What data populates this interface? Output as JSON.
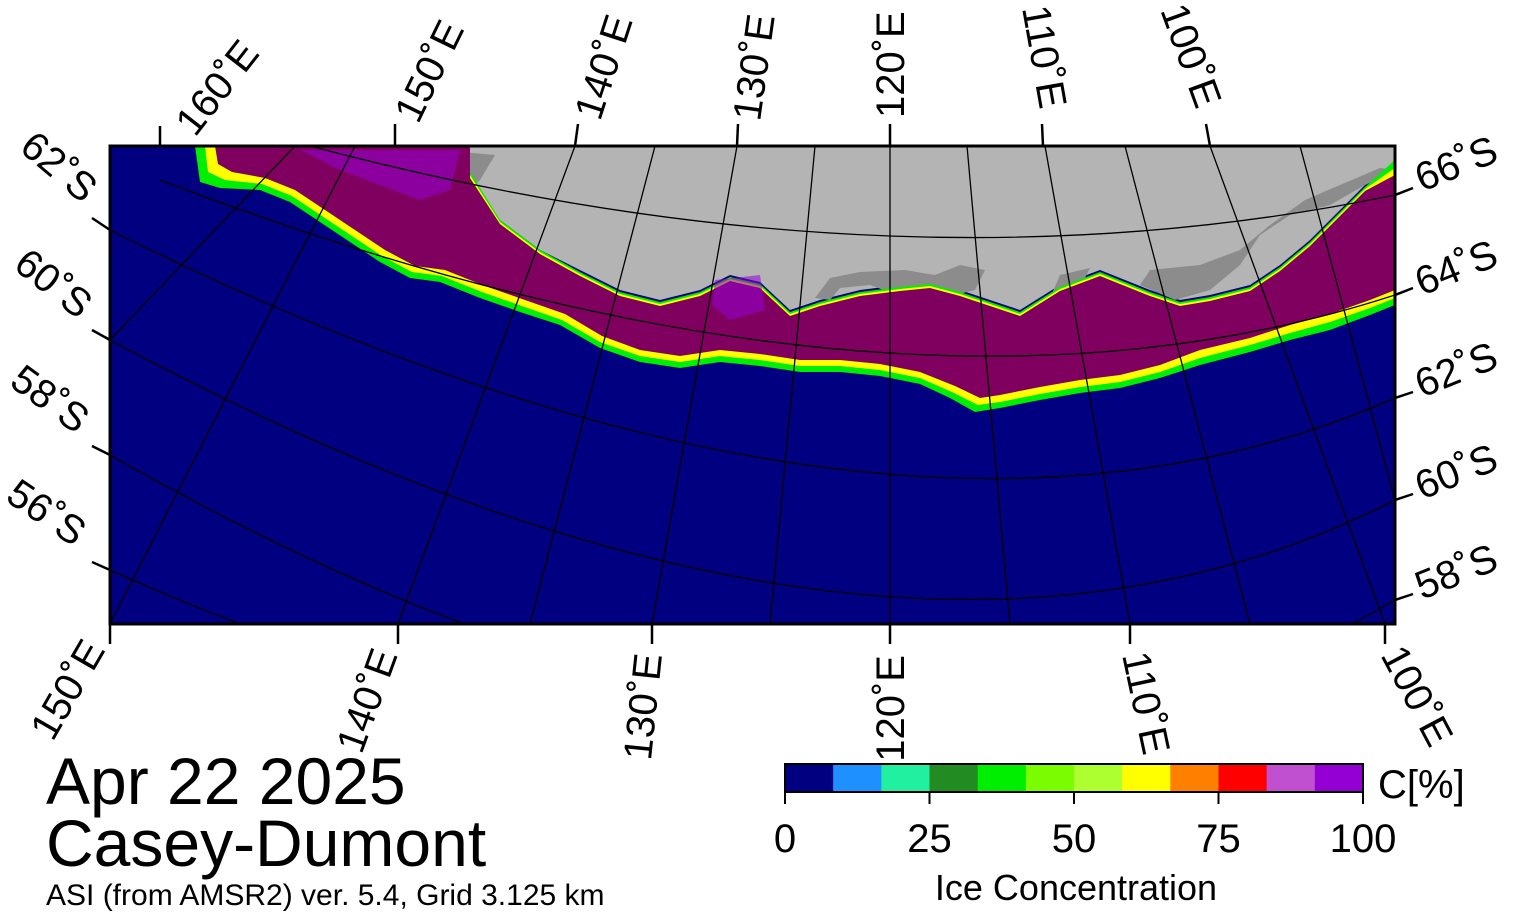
{
  "map": {
    "date": "Apr 22 2025",
    "region": "Casey-Dumont",
    "product": "ASI (from AMSR2) ver. 5.4,  Grid 3.125 km",
    "top_lon_labels": [
      "160˚E",
      "150˚E",
      "140˚E",
      "130˚E",
      "120˚E",
      "110˚E",
      "100˚E"
    ],
    "bottom_lon_labels": [
      "150˚E",
      "140˚E",
      "130˚E",
      "120˚E",
      "110˚E",
      "100˚E"
    ],
    "left_lat_labels": [
      "62˚S",
      "60˚S",
      "58˚S",
      "56˚S"
    ],
    "right_lat_labels": [
      "66˚S",
      "64˚S",
      "62˚S",
      "60˚S",
      "58˚S"
    ],
    "colors": {
      "ocean": "#000080",
      "land": "#b4b4b4",
      "ice_shelf": "#8c8c8c",
      "frame": "#000000"
    }
  },
  "colorbar": {
    "title": "Ice Concentration",
    "unit_label": "C[%]",
    "ticks": [
      "0",
      "25",
      "50",
      "75",
      "100"
    ],
    "range": [
      0,
      100
    ],
    "colors": [
      "#000080",
      "#1e90ff",
      "#20f0a0",
      "#228b22",
      "#00ee00",
      "#7cfc00",
      "#adff2f",
      "#ffff00",
      "#ff8000",
      "#ff0000",
      "#c050d0",
      "#9400d3"
    ]
  }
}
